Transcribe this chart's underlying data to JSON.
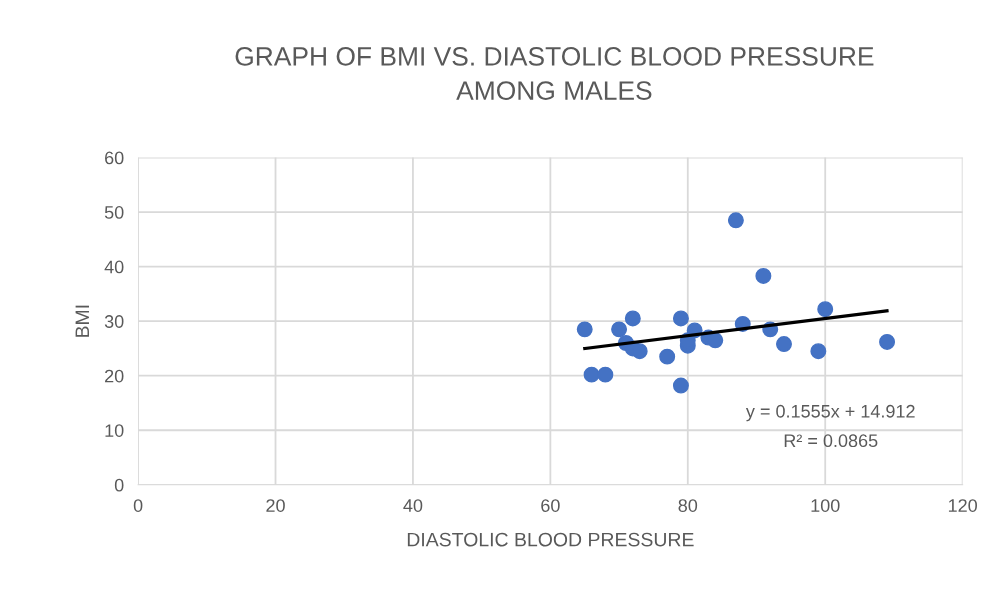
{
  "chart_data": {
    "type": "scatter",
    "title": "GRAPH OF BMI VS. DIASTOLIC BLOOD PRESSURE\nAMONG MALES",
    "xlabel": "DIASTOLIC BLOOD PRESSURE",
    "ylabel": "BMI",
    "xlim": [
      0,
      120
    ],
    "xticks": [
      0,
      20,
      40,
      60,
      80,
      100,
      120
    ],
    "ylim": [
      0,
      60
    ],
    "yticks": [
      0,
      10,
      20,
      30,
      40,
      50,
      60
    ],
    "grid": true,
    "series": [
      {
        "color": "#4472c4",
        "marker": "circle",
        "x": [
          65,
          66,
          68,
          70,
          71,
          72,
          72,
          73,
          77,
          79,
          79,
          80,
          80,
          81,
          83,
          84,
          87,
          88,
          91,
          92,
          94,
          99,
          100,
          109
        ],
        "values": [
          28.5,
          20.2,
          20.2,
          28.5,
          26,
          30.5,
          25,
          24.5,
          23.5,
          30.5,
          18.2,
          25.5,
          26.5,
          28.3,
          27,
          26.5,
          48.5,
          29.5,
          38.3,
          28.5,
          25.8,
          24.5,
          32.2,
          26.2
        ]
      },
      {
        "type": "line",
        "color": "#000000",
        "marker": "none",
        "x": [
          65,
          109
        ],
        "values": [
          25.0,
          31.9
        ]
      }
    ],
    "annotations": [
      "y = 0.1555x + 14.912",
      "R² = 0.0865"
    ]
  }
}
